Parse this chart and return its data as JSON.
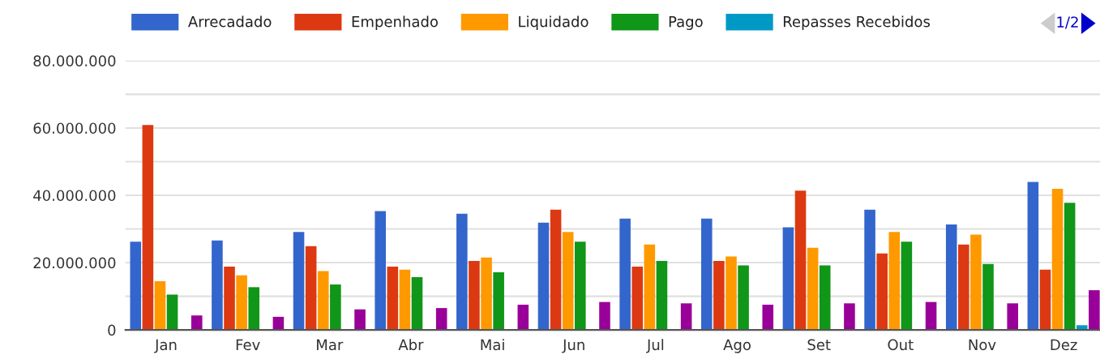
{
  "chart_data": {
    "type": "bar",
    "categories": [
      "Jan",
      "Fev",
      "Mar",
      "Abr",
      "Mai",
      "Jun",
      "Jul",
      "Ago",
      "Set",
      "Out",
      "Nov",
      "Dez"
    ],
    "series": [
      {
        "name": "Arrecadado",
        "color": "#3366cc",
        "values": [
          26200000,
          26600000,
          29100000,
          35300000,
          34500000,
          31900000,
          33100000,
          33100000,
          30500000,
          35700000,
          31300000,
          44000000
        ]
      },
      {
        "name": "Empenhado",
        "color": "#dc3912",
        "values": [
          60900000,
          18800000,
          24900000,
          18800000,
          20500000,
          35700000,
          18800000,
          20500000,
          41400000,
          22700000,
          25400000,
          17900000
        ]
      },
      {
        "name": "Liquidado",
        "color": "#ff9900",
        "values": [
          14500000,
          16200000,
          17500000,
          17900000,
          21500000,
          29100000,
          25400000,
          21800000,
          24400000,
          29100000,
          28300000,
          41900000
        ]
      },
      {
        "name": "Pago",
        "color": "#109618",
        "values": [
          10500000,
          12700000,
          13500000,
          15700000,
          17100000,
          26200000,
          20500000,
          19200000,
          19200000,
          26200000,
          19600000,
          37800000
        ]
      },
      {
        "name": "Repasses Recebidos",
        "color": "#0099c6",
        "values": [
          0,
          0,
          0,
          0,
          0,
          0,
          0,
          0,
          0,
          0,
          0,
          1400000
        ]
      },
      {
        "color": "#990099",
        "values": [
          4300000,
          3900000,
          6100000,
          6500000,
          7500000,
          8300000,
          7900000,
          7500000,
          7900000,
          8300000,
          7900000,
          11800000
        ]
      }
    ],
    "ylim": [
      0,
      80000000
    ],
    "yticks": [
      {
        "value": 0,
        "label": "0"
      },
      {
        "value": 10000000,
        "label": null
      },
      {
        "value": 20000000,
        "label": "20.000.000"
      },
      {
        "value": 30000000,
        "label": null
      },
      {
        "value": 40000000,
        "label": "40.000.000"
      },
      {
        "value": 50000000,
        "label": null
      },
      {
        "value": 60000000,
        "label": "60.000.000"
      },
      {
        "value": 70000000,
        "label": null
      },
      {
        "value": 80000000,
        "label": "80.000.000"
      }
    ],
    "grid": "y",
    "legend": "top",
    "annotations": [
      "1/2"
    ]
  }
}
